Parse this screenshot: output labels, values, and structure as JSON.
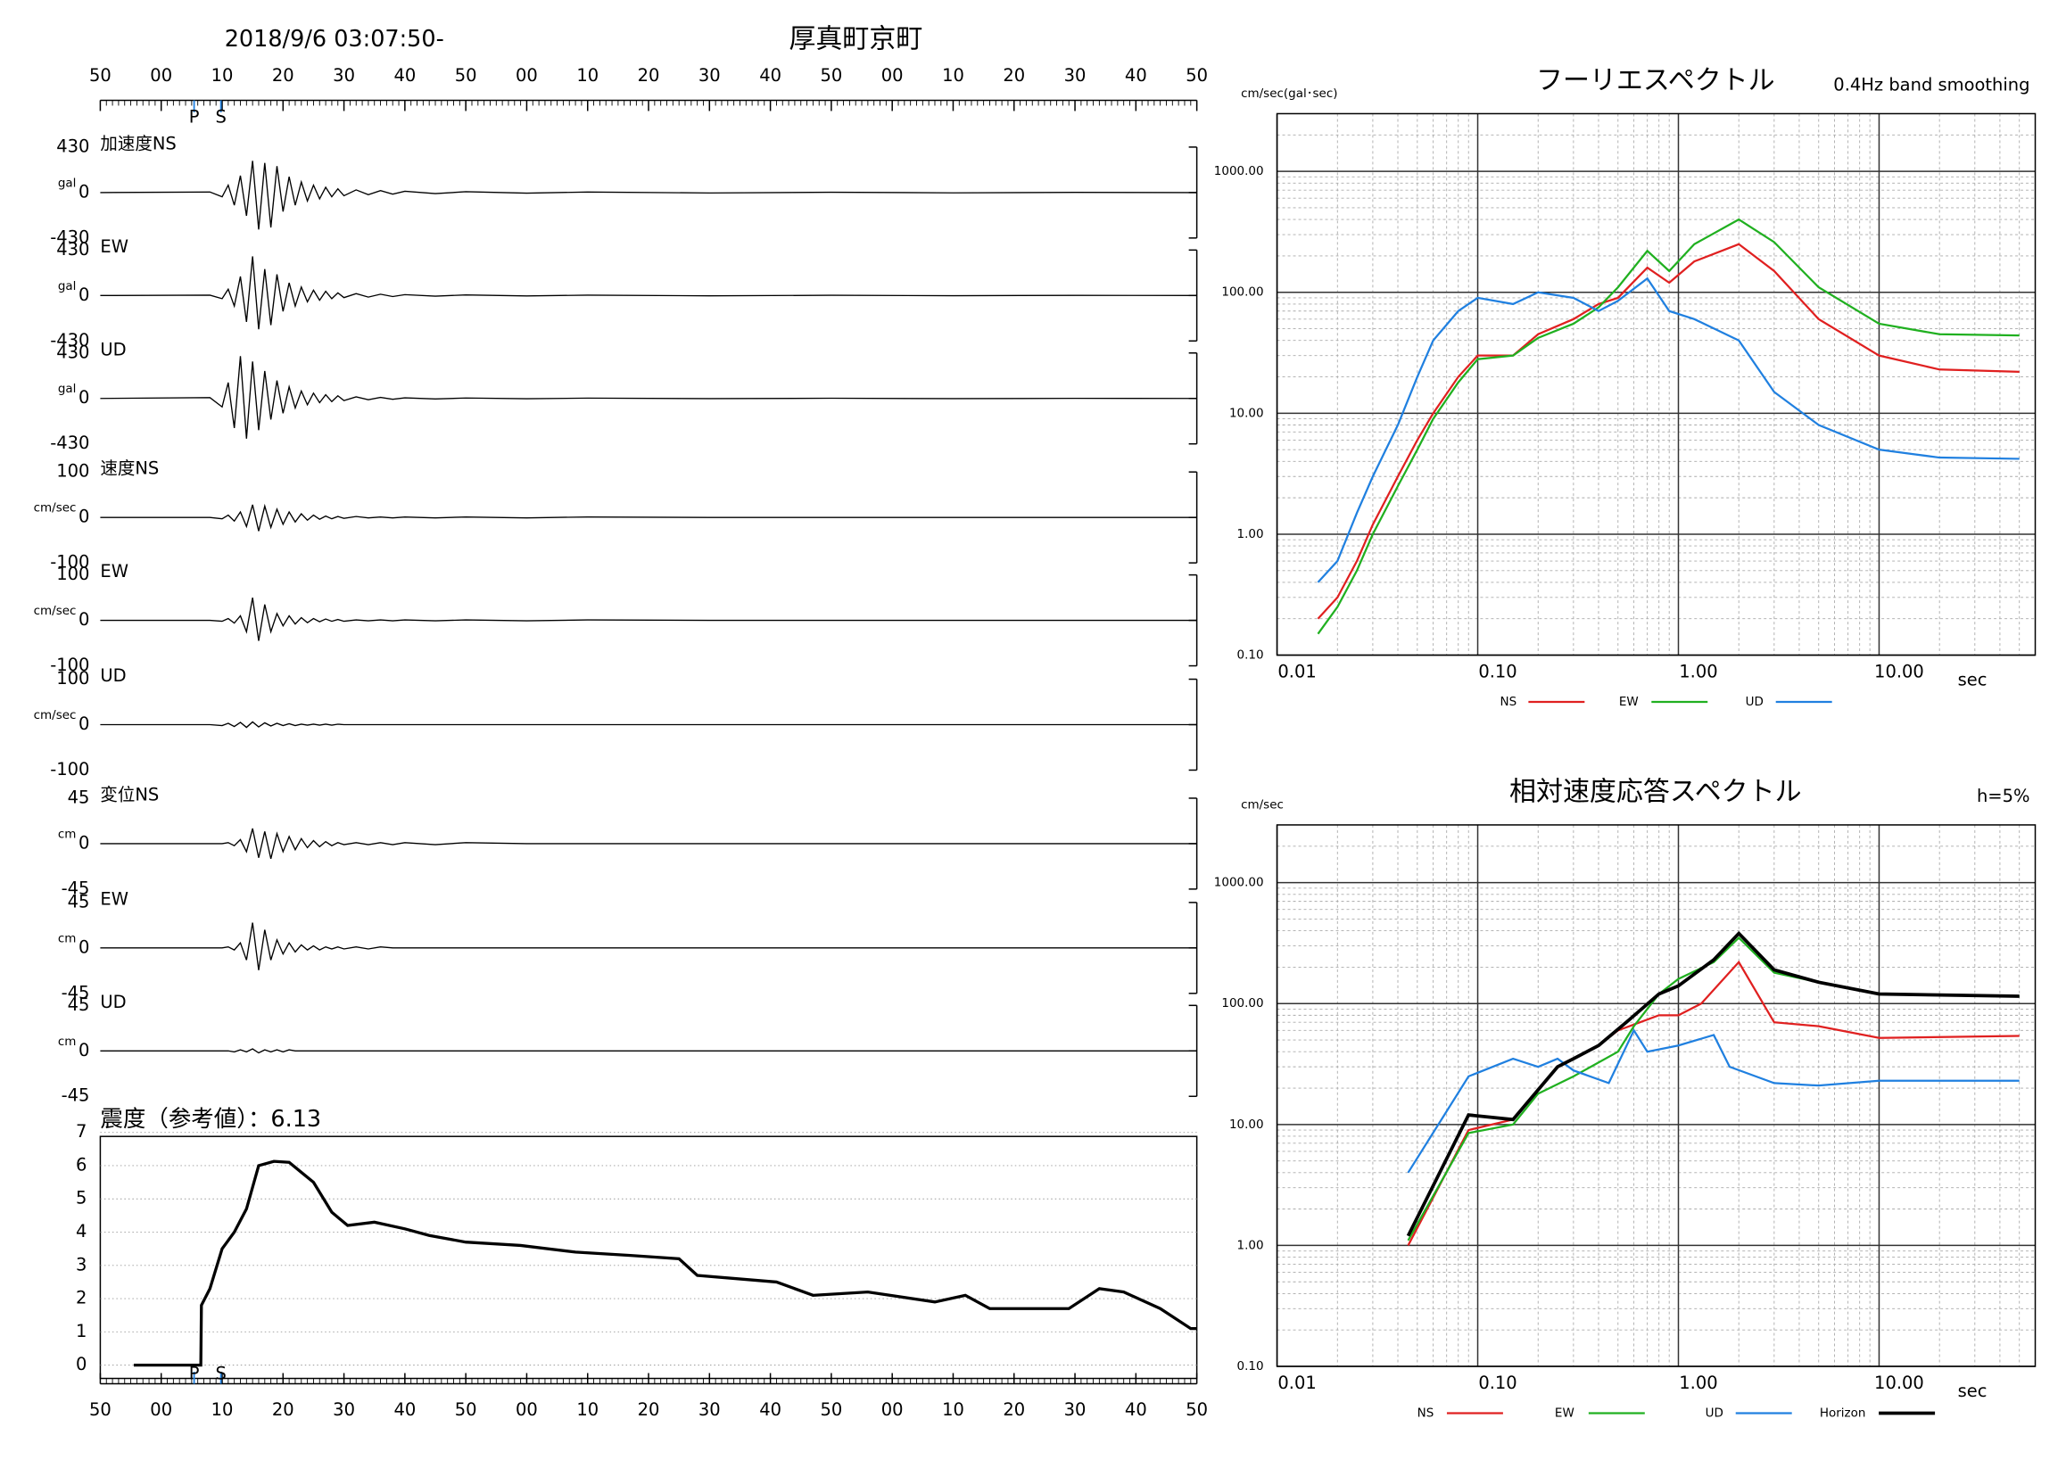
{
  "chart_data": [
    {
      "type": "waveform",
      "title": "厚真町京町",
      "subtitle": "2018/9/6 03:07:50-",
      "xlim": [
        0,
        180
      ],
      "xticks": [
        {
          "value": 0,
          "label": "50"
        },
        {
          "value": 10,
          "label": "00"
        },
        {
          "value": 20,
          "label": "10"
        },
        {
          "value": 30,
          "label": "20"
        },
        {
          "value": 40,
          "label": "30"
        },
        {
          "value": 50,
          "label": "40"
        },
        {
          "value": 60,
          "label": "50"
        },
        {
          "value": 70,
          "label": "00"
        },
        {
          "value": 80,
          "label": "10"
        },
        {
          "value": 90,
          "label": "20"
        },
        {
          "value": 100,
          "label": "30"
        },
        {
          "value": 110,
          "label": "40"
        },
        {
          "value": 120,
          "label": "50"
        },
        {
          "value": 130,
          "label": "00"
        },
        {
          "value": 140,
          "label": "10"
        },
        {
          "value": 150,
          "label": "20"
        },
        {
          "value": 160,
          "label": "30"
        },
        {
          "value": 170,
          "label": "40"
        },
        {
          "value": 180,
          "label": "50"
        }
      ],
      "markers": [
        {
          "label": "P",
          "value": 15.4
        },
        {
          "label": "S",
          "value": 19.8
        }
      ],
      "marker_color": "#2080e0",
      "x": [
        0,
        18,
        20,
        21,
        22,
        23,
        24,
        25,
        26,
        27,
        28,
        29,
        30,
        31,
        32,
        33,
        34,
        35,
        36,
        37,
        38,
        39,
        40,
        42,
        44,
        46,
        48,
        50,
        55,
        60,
        70,
        80,
        100,
        120,
        140,
        160,
        180
      ],
      "traces": [
        {
          "name": "加速度NS",
          "unit": "gal",
          "ylim": [
            -430,
            430
          ],
          "yticks": [
            430,
            0,
            -430
          ],
          "values": [
            0,
            5,
            -40,
            70,
            -120,
            160,
            -220,
            300,
            -350,
            280,
            -330,
            250,
            -180,
            150,
            -120,
            100,
            -80,
            70,
            -60,
            50,
            -40,
            35,
            -30,
            25,
            -20,
            18,
            -15,
            12,
            -10,
            8,
            -6,
            5,
            -4,
            3,
            -3,
            2,
            0
          ]
        },
        {
          "name": "EW",
          "unit": "gal",
          "ylim": [
            -430,
            430
          ],
          "yticks": [
            430,
            0,
            -430
          ],
          "values": [
            0,
            3,
            -30,
            60,
            -100,
            180,
            -250,
            370,
            -320,
            250,
            -280,
            200,
            -150,
            120,
            -100,
            80,
            -60,
            50,
            -45,
            40,
            -30,
            25,
            -20,
            18,
            -15,
            12,
            -10,
            8,
            -6,
            5,
            -4,
            3,
            -3,
            2,
            -2,
            1,
            0
          ]
        },
        {
          "name": "UD",
          "unit": "gal",
          "ylim": [
            -430,
            430
          ],
          "yticks": [
            430,
            0,
            -430
          ],
          "values": [
            0,
            8,
            -80,
            150,
            -280,
            400,
            -380,
            350,
            -300,
            260,
            -200,
            170,
            -140,
            110,
            -90,
            70,
            -60,
            50,
            -40,
            35,
            -30,
            25,
            -20,
            15,
            -12,
            10,
            -8,
            6,
            -5,
            4,
            -3,
            3,
            -2,
            2,
            -2,
            1,
            0
          ]
        },
        {
          "name": "速度NS",
          "unit": "cm/sec",
          "ylim": [
            -100,
            100
          ],
          "yticks": [
            100,
            0,
            -100
          ],
          "values": [
            0,
            0,
            -3,
            5,
            -8,
            12,
            -20,
            28,
            -30,
            25,
            -22,
            18,
            -15,
            12,
            -10,
            8,
            -6,
            5,
            -4,
            3,
            -3,
            2,
            -2,
            2,
            -1,
            1,
            -1,
            1,
            -1,
            1,
            -1,
            1,
            0,
            0,
            0,
            0,
            0
          ]
        },
        {
          "name": "EW",
          "unit": "cm/sec",
          "ylim": [
            -100,
            100
          ],
          "yticks": [
            100,
            0,
            -100
          ],
          "values": [
            0,
            0,
            -2,
            4,
            -6,
            10,
            -25,
            50,
            -45,
            35,
            -25,
            15,
            -12,
            10,
            -8,
            6,
            -5,
            4,
            -3,
            3,
            -2,
            2,
            -2,
            1,
            -1,
            1,
            -1,
            1,
            -1,
            1,
            -1,
            1,
            0,
            0,
            0,
            0,
            0
          ]
        },
        {
          "name": "UD",
          "unit": "cm/sec",
          "ylim": [
            -100,
            100
          ],
          "yticks": [
            100,
            0,
            -100
          ],
          "values": [
            0,
            0,
            -2,
            3,
            -4,
            5,
            -6,
            6,
            -5,
            4,
            -3,
            3,
            -2,
            2,
            -2,
            1,
            -1,
            1,
            -1,
            1,
            -1,
            1,
            0,
            0,
            0,
            0,
            0,
            0,
            0,
            0,
            0,
            0,
            0,
            0,
            0,
            0,
            0
          ]
        },
        {
          "name": "変位NS",
          "unit": "cm",
          "ylim": [
            -45,
            45
          ],
          "yticks": [
            45,
            0,
            -45
          ],
          "values": [
            0,
            0,
            0,
            1,
            -2,
            4,
            -8,
            15,
            -14,
            12,
            -15,
            10,
            -8,
            7,
            -6,
            5,
            -4,
            3,
            -3,
            2,
            -2,
            1,
            -1,
            1,
            -1,
            1,
            -1,
            1,
            -1,
            1,
            0,
            0,
            0,
            0,
            0,
            0,
            0
          ]
        },
        {
          "name": "EW",
          "unit": "cm",
          "ylim": [
            -45,
            45
          ],
          "yticks": [
            45,
            0,
            -45
          ],
          "values": [
            0,
            0,
            0,
            1,
            -2,
            5,
            -12,
            25,
            -22,
            18,
            -12,
            8,
            -6,
            5,
            -4,
            3,
            -2,
            2,
            -2,
            1,
            -1,
            1,
            -1,
            1,
            -1,
            1,
            0,
            0,
            0,
            0,
            0,
            0,
            0,
            0,
            0,
            0,
            0
          ]
        },
        {
          "name": "UD",
          "unit": "cm",
          "ylim": [
            -45,
            45
          ],
          "yticks": [
            45,
            0,
            -45
          ],
          "values": [
            0,
            0,
            0,
            0,
            -1,
            1,
            -1,
            2,
            -2,
            1,
            -1,
            1,
            -1,
            1,
            0,
            0,
            0,
            0,
            0,
            0,
            0,
            0,
            0,
            0,
            0,
            0,
            0,
            0,
            0,
            0,
            0,
            0,
            0,
            0,
            0,
            0,
            0
          ]
        }
      ]
    },
    {
      "type": "intensity",
      "title": "震度（参考値）：6.13",
      "xlim": [
        0,
        180
      ],
      "ylim": [
        -0.4,
        7
      ],
      "yticks": [
        0,
        1,
        2,
        3,
        4,
        5,
        6,
        7
      ],
      "grid": true,
      "color": "#000000",
      "x": [
        5.5,
        16.5,
        16.6,
        18,
        20,
        22,
        24,
        26,
        28.5,
        31,
        33,
        35,
        38,
        40.6,
        45,
        50,
        54,
        60,
        69,
        78,
        87,
        95,
        98,
        111,
        117,
        126,
        137,
        142,
        146,
        159,
        164,
        168,
        174,
        179,
        180
      ],
      "values": [
        0,
        0,
        1.8,
        2.3,
        3.5,
        4.0,
        4.7,
        6.0,
        6.13,
        6.1,
        5.8,
        5.5,
        4.6,
        4.2,
        4.3,
        4.1,
        3.9,
        3.7,
        3.6,
        3.4,
        3.3,
        3.2,
        2.7,
        2.5,
        2.1,
        2.2,
        1.9,
        2.1,
        1.7,
        1.7,
        2.3,
        2.2,
        1.7,
        1.1,
        1.1
      ]
    },
    {
      "type": "line",
      "title": "フーリエスペクトル",
      "subtitle": "0.4Hz band smoothing",
      "ylabel": "cm/sec(gal･sec)",
      "xlabel": "sec",
      "xscale": "log",
      "yscale": "log",
      "xlim": [
        0.01,
        60
      ],
      "ylim": [
        0.1,
        3000
      ],
      "grid": true,
      "legend": "bottom",
      "xticks": [
        0.01,
        {
          "value": 0.1,
          "label": "0.10"
        },
        {
          "value": 1,
          "label": "1.00"
        },
        {
          "value": 10,
          "label": "10.00"
        }
      ],
      "yticks": [
        {
          "value": 0.1,
          "label": "0.10"
        },
        {
          "value": 1,
          "label": "1.00"
        },
        {
          "value": 10,
          "label": "10.00"
        },
        {
          "value": 100,
          "label": "100.00"
        },
        {
          "value": 1000,
          "label": "1000.00"
        }
      ],
      "series": [
        {
          "name": "NS",
          "color": "#e02020",
          "x": [
            0.016,
            0.02,
            0.025,
            0.03,
            0.04,
            0.05,
            0.06,
            0.08,
            0.1,
            0.15,
            0.2,
            0.3,
            0.4,
            0.5,
            0.7,
            0.9,
            1.2,
            2,
            3,
            5,
            10,
            20,
            50
          ],
          "values": [
            0.2,
            0.3,
            0.6,
            1.2,
            3,
            6,
            10,
            20,
            30,
            30,
            45,
            60,
            80,
            90,
            160,
            120,
            180,
            250,
            150,
            60,
            30,
            23,
            22
          ]
        },
        {
          "name": "EW",
          "color": "#20b020",
          "x": [
            0.016,
            0.02,
            0.025,
            0.03,
            0.04,
            0.05,
            0.06,
            0.08,
            0.1,
            0.15,
            0.2,
            0.3,
            0.4,
            0.5,
            0.7,
            0.9,
            1.2,
            2,
            3,
            5,
            10,
            20,
            50
          ],
          "values": [
            0.15,
            0.25,
            0.5,
            1,
            2.5,
            5,
            9,
            18,
            28,
            30,
            42,
            55,
            75,
            110,
            220,
            150,
            250,
            400,
            260,
            110,
            55,
            45,
            44
          ]
        },
        {
          "name": "UD",
          "color": "#2080e0",
          "x": [
            0.016,
            0.02,
            0.025,
            0.03,
            0.04,
            0.05,
            0.06,
            0.08,
            0.1,
            0.15,
            0.2,
            0.3,
            0.4,
            0.5,
            0.7,
            0.9,
            1.2,
            2,
            3,
            5,
            10,
            20,
            50
          ],
          "values": [
            0.4,
            0.6,
            1.5,
            3,
            8,
            20,
            40,
            70,
            90,
            80,
            100,
            90,
            70,
            85,
            130,
            70,
            60,
            40,
            15,
            8,
            5,
            4.3,
            4.2
          ]
        }
      ]
    },
    {
      "type": "line",
      "title": "相対速度応答スペクトル",
      "subtitle": "h=5%",
      "ylabel": "cm/sec",
      "xlabel": "sec",
      "xscale": "log",
      "yscale": "log",
      "xlim": [
        0.01,
        60
      ],
      "ylim": [
        0.1,
        3000
      ],
      "grid": true,
      "legend": "bottom",
      "xticks": [
        0.01,
        {
          "value": 0.1,
          "label": "0.10"
        },
        {
          "value": 1,
          "label": "1.00"
        },
        {
          "value": 10,
          "label": "10.00"
        }
      ],
      "yticks": [
        {
          "value": 0.1,
          "label": "0.10"
        },
        {
          "value": 1,
          "label": "1.00"
        },
        {
          "value": 10,
          "label": "10.00"
        },
        {
          "value": 100,
          "label": "100.00"
        },
        {
          "value": 1000,
          "label": "1000.00"
        }
      ],
      "series": [
        {
          "name": "NS",
          "color": "#e02020",
          "x": [
            0.045,
            0.09,
            0.15,
            0.25,
            0.4,
            0.5,
            0.8,
            1,
            1.3,
            2,
            3,
            5,
            10,
            50
          ],
          "values": [
            1,
            9,
            11,
            30,
            45,
            60,
            80,
            80,
            100,
            220,
            70,
            65,
            52,
            54
          ]
        },
        {
          "name": "EW",
          "color": "#20b020",
          "x": [
            0.045,
            0.09,
            0.15,
            0.2,
            0.3,
            0.5,
            0.6,
            0.8,
            1,
            1.5,
            2,
            3,
            5,
            10,
            50
          ],
          "values": [
            1.1,
            8.5,
            10,
            18,
            25,
            40,
            65,
            120,
            160,
            220,
            350,
            180,
            150,
            120,
            115
          ]
        },
        {
          "name": "UD",
          "color": "#2080e0",
          "x": [
            0.045,
            0.09,
            0.15,
            0.2,
            0.25,
            0.3,
            0.45,
            0.6,
            0.7,
            1,
            1.5,
            1.8,
            3,
            5,
            10,
            50
          ],
          "values": [
            4,
            25,
            35,
            30,
            35,
            28,
            22,
            60,
            40,
            45,
            55,
            30,
            22,
            21,
            23,
            23
          ]
        },
        {
          "name": "Horizon",
          "color": "#000000",
          "x": [
            0.045,
            0.09,
            0.15,
            0.25,
            0.3,
            0.4,
            0.55,
            0.8,
            1,
            1.5,
            2,
            3,
            5,
            10,
            50
          ],
          "values": [
            1.2,
            12,
            11,
            30,
            35,
            45,
            70,
            120,
            140,
            230,
            380,
            190,
            150,
            120,
            115
          ]
        }
      ]
    }
  ]
}
